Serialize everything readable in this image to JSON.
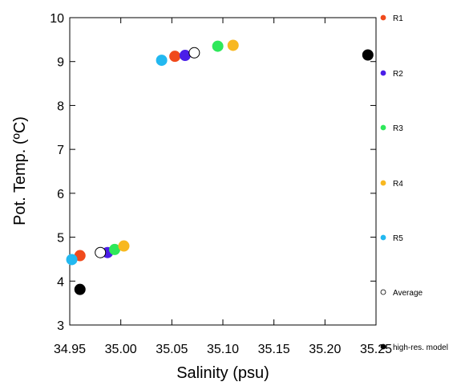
{
  "chart_data": {
    "type": "scatter",
    "xlabel": "Salinity (psu)",
    "ylabel": "Pot. Temp. (ºC)",
    "xlim": [
      34.95,
      35.25
    ],
    "ylim": [
      3,
      10
    ],
    "xticks": [
      "34.95",
      "35.00",
      "35.05",
      "35.10",
      "35.15",
      "35.20",
      "35.25"
    ],
    "yticks": [
      "3",
      "4",
      "5",
      "6",
      "7",
      "8",
      "9",
      "10"
    ],
    "x_tick_values": [
      34.95,
      35.0,
      35.05,
      35.1,
      35.15,
      35.2,
      35.25
    ],
    "y_tick_values": [
      3,
      4,
      5,
      6,
      7,
      8,
      9,
      10
    ],
    "legend_placement": "right",
    "series": [
      {
        "name": "R1",
        "color": "#f04a1c",
        "filled": true,
        "points": [
          {
            "x": 34.96,
            "y": 4.58
          },
          {
            "x": 35.053,
            "y": 9.12
          }
        ]
      },
      {
        "name": "R2",
        "color": "#4a1ee8",
        "filled": true,
        "points": [
          {
            "x": 34.987,
            "y": 4.65
          },
          {
            "x": 35.063,
            "y": 9.14
          }
        ]
      },
      {
        "name": "R3",
        "color": "#2ee85a",
        "filled": true,
        "points": [
          {
            "x": 34.994,
            "y": 4.72
          },
          {
            "x": 35.095,
            "y": 9.35
          }
        ]
      },
      {
        "name": "R4",
        "color": "#f8b820",
        "filled": true,
        "points": [
          {
            "x": 35.003,
            "y": 4.8
          },
          {
            "x": 35.11,
            "y": 9.37
          }
        ]
      },
      {
        "name": "R5",
        "color": "#22b8f0",
        "filled": true,
        "points": [
          {
            "x": 34.952,
            "y": 4.49
          },
          {
            "x": 35.04,
            "y": 9.03
          }
        ]
      },
      {
        "name": "Average",
        "color": "#000000",
        "filled": false,
        "points": [
          {
            "x": 34.98,
            "y": 4.65
          },
          {
            "x": 35.072,
            "y": 9.2
          }
        ]
      },
      {
        "name": "high-res. model",
        "color": "#000000",
        "filled": true,
        "points": [
          {
            "x": 34.96,
            "y": 3.81
          },
          {
            "x": 35.242,
            "y": 9.15
          }
        ]
      }
    ]
  }
}
